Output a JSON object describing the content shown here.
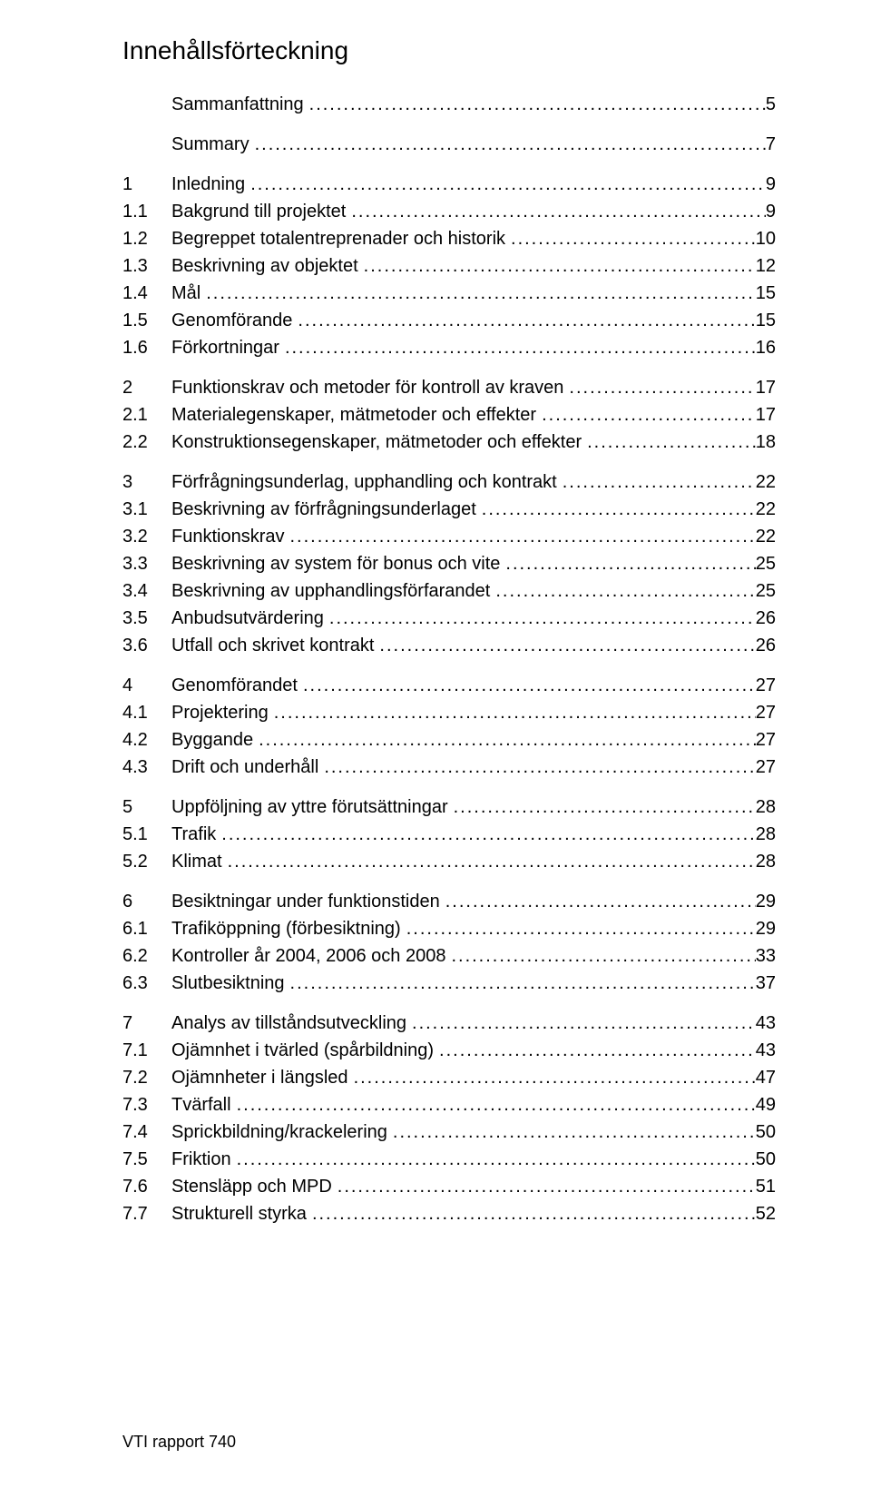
{
  "title": "Innehållsförteckning",
  "footer": "VTI rapport 740",
  "colors": {
    "text": "#000000",
    "background": "#ffffff"
  },
  "typography": {
    "title_fontsize": 28,
    "body_fontsize": 20,
    "footer_fontsize": 18
  },
  "toc": [
    {
      "level": 0,
      "num": "",
      "label": "Sammanfattning",
      "page": "5",
      "group_start": true
    },
    {
      "level": 0,
      "num": "",
      "label": "Summary",
      "page": "7",
      "group_start": true
    },
    {
      "level": 0,
      "num": "1",
      "label": "Inledning",
      "page": "9",
      "group_start": true
    },
    {
      "level": 1,
      "num": "1.1",
      "label": "Bakgrund till projektet",
      "page": "9"
    },
    {
      "level": 1,
      "num": "1.2",
      "label": "Begreppet totalentreprenader och historik",
      "page": "10"
    },
    {
      "level": 1,
      "num": "1.3",
      "label": "Beskrivning av objektet",
      "page": "12"
    },
    {
      "level": 1,
      "num": "1.4",
      "label": "Mål",
      "page": "15"
    },
    {
      "level": 1,
      "num": "1.5",
      "label": "Genomförande",
      "page": "15"
    },
    {
      "level": 1,
      "num": "1.6",
      "label": "Förkortningar",
      "page": "16"
    },
    {
      "level": 0,
      "num": "2",
      "label": "Funktionskrav och metoder för kontroll av kraven",
      "page": "17",
      "group_start": true
    },
    {
      "level": 1,
      "num": "2.1",
      "label": "Materialegenskaper, mätmetoder och effekter",
      "page": "17"
    },
    {
      "level": 1,
      "num": "2.2",
      "label": "Konstruktionsegenskaper, mätmetoder och effekter",
      "page": "18"
    },
    {
      "level": 0,
      "num": "3",
      "label": "Förfrågningsunderlag, upphandling och kontrakt",
      "page": "22",
      "group_start": true
    },
    {
      "level": 1,
      "num": "3.1",
      "label": "Beskrivning av förfrågningsunderlaget",
      "page": "22"
    },
    {
      "level": 1,
      "num": "3.2",
      "label": "Funktionskrav",
      "page": "22"
    },
    {
      "level": 1,
      "num": "3.3",
      "label": "Beskrivning av system för bonus och vite",
      "page": "25"
    },
    {
      "level": 1,
      "num": "3.4",
      "label": "Beskrivning av upphandlingsförfarandet",
      "page": "25"
    },
    {
      "level": 1,
      "num": "3.5",
      "label": "Anbudsutvärdering",
      "page": "26"
    },
    {
      "level": 1,
      "num": "3.6",
      "label": "Utfall och skrivet kontrakt",
      "page": "26"
    },
    {
      "level": 0,
      "num": "4",
      "label": "Genomförandet",
      "page": "27",
      "group_start": true
    },
    {
      "level": 1,
      "num": "4.1",
      "label": "Projektering",
      "page": "27"
    },
    {
      "level": 1,
      "num": "4.2",
      "label": "Byggande",
      "page": "27"
    },
    {
      "level": 1,
      "num": "4.3",
      "label": "Drift och underhåll",
      "page": "27"
    },
    {
      "level": 0,
      "num": "5",
      "label": "Uppföljning av yttre förutsättningar",
      "page": "28",
      "group_start": true
    },
    {
      "level": 1,
      "num": "5.1",
      "label": "Trafik",
      "page": "28"
    },
    {
      "level": 1,
      "num": "5.2",
      "label": "Klimat",
      "page": "28"
    },
    {
      "level": 0,
      "num": "6",
      "label": "Besiktningar under funktionstiden",
      "page": "29",
      "group_start": true
    },
    {
      "level": 1,
      "num": "6.1",
      "label": "Trafiköppning (förbesiktning)",
      "page": "29"
    },
    {
      "level": 1,
      "num": "6.2",
      "label": "Kontroller år 2004, 2006 och 2008",
      "page": "33"
    },
    {
      "level": 1,
      "num": "6.3",
      "label": "Slutbesiktning",
      "page": "37"
    },
    {
      "level": 0,
      "num": "7",
      "label": "Analys av tillståndsutveckling",
      "page": "43",
      "group_start": true
    },
    {
      "level": 1,
      "num": "7.1",
      "label": "Ojämnhet i tvärled (spårbildning)",
      "page": "43"
    },
    {
      "level": 1,
      "num": "7.2",
      "label": "Ojämnheter i längsled",
      "page": "47"
    },
    {
      "level": 1,
      "num": "7.3",
      "label": "Tvärfall",
      "page": "49"
    },
    {
      "level": 1,
      "num": "7.4",
      "label": "Sprickbildning/krackelering",
      "page": "50"
    },
    {
      "level": 1,
      "num": "7.5",
      "label": "Friktion",
      "page": "50"
    },
    {
      "level": 1,
      "num": "7.6",
      "label": "Stensläpp och MPD",
      "page": "51"
    },
    {
      "level": 1,
      "num": "7.7",
      "label": "Strukturell styrka",
      "page": "52"
    }
  ]
}
